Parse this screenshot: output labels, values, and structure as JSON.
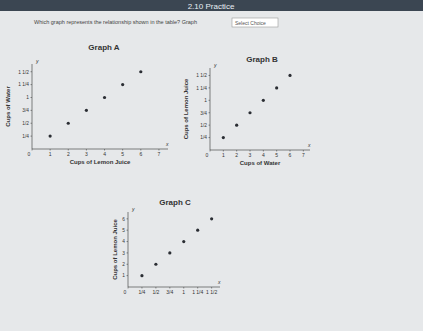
{
  "header": "2.10 Practice",
  "question": "Which graph represents the relationship shown in the table? Graph",
  "dropdown": "Select Choice",
  "chart_data": [
    {
      "type": "scatter",
      "title": "Graph A",
      "x_label": "Cups of Lemon Juice",
      "y_label": "Cups of Water",
      "x_symbol": "x",
      "y_symbol": "y",
      "x": [
        1,
        2,
        3,
        4,
        5,
        6
      ],
      "values": [
        0.25,
        0.5,
        0.75,
        1,
        1.25,
        1.5
      ],
      "color": "#2a2d33",
      "marker": "circle",
      "xlim": [
        0,
        7.5
      ],
      "ylim": [
        0,
        1.65
      ],
      "xticks": [
        0,
        1,
        2,
        3,
        4,
        5,
        6,
        7
      ],
      "yticks": [
        {
          "value": 0.25,
          "label": "1/4"
        },
        {
          "value": 0.5,
          "label": "1/2"
        },
        {
          "value": 0.75,
          "label": "3/4"
        },
        1,
        {
          "value": 1.25,
          "label": "1 1/4"
        },
        {
          "value": 1.5,
          "label": "1 1/2"
        }
      ]
    },
    {
      "type": "scatter",
      "title": "Graph B",
      "x_label": "Cups of Water",
      "y_label": "Cups of Lemon Juice",
      "x_symbol": "x",
      "y_symbol": "y",
      "x": [
        1,
        2,
        3,
        4,
        5,
        6
      ],
      "values": [
        0.25,
        0.5,
        0.75,
        1,
        1.25,
        1.5
      ],
      "color": "#2a2d33",
      "marker": "circle",
      "xlim": [
        0,
        7.5
      ],
      "ylim": [
        0,
        1.65
      ],
      "xticks": [
        0,
        1,
        2,
        3,
        4,
        5,
        6,
        7
      ],
      "yticks": [
        {
          "value": 0.25,
          "label": "1/4"
        },
        {
          "value": 0.5,
          "label": "1/2"
        },
        {
          "value": 0.75,
          "label": "3/4"
        },
        1,
        {
          "value": 1.25,
          "label": "1 1/4"
        },
        {
          "value": 1.5,
          "label": "1 1/2"
        }
      ]
    },
    {
      "type": "scatter",
      "title": "Graph C",
      "y_label": "Cups of Lemon Juice",
      "x_symbol": "x",
      "y_symbol": "y",
      "x": [
        0.25,
        0.5,
        0.75,
        1,
        1.25,
        1.5
      ],
      "values": [
        1,
        2,
        3,
        4,
        5,
        6
      ],
      "color": "#2a2d33",
      "marker": "circle",
      "xlim": [
        0,
        1.65
      ],
      "ylim": [
        0,
        6.6
      ],
      "xticks": [
        0,
        {
          "value": 0.25,
          "label": "1/4"
        },
        {
          "value": 0.5,
          "label": "1/2"
        },
        {
          "value": 0.75,
          "label": "3/4"
        },
        1,
        {
          "value": 1.25,
          "label": "1 1/4"
        },
        {
          "value": 1.5,
          "label": "1 1/2"
        }
      ],
      "yticks": [
        1,
        2,
        3,
        4,
        5,
        6
      ]
    }
  ]
}
